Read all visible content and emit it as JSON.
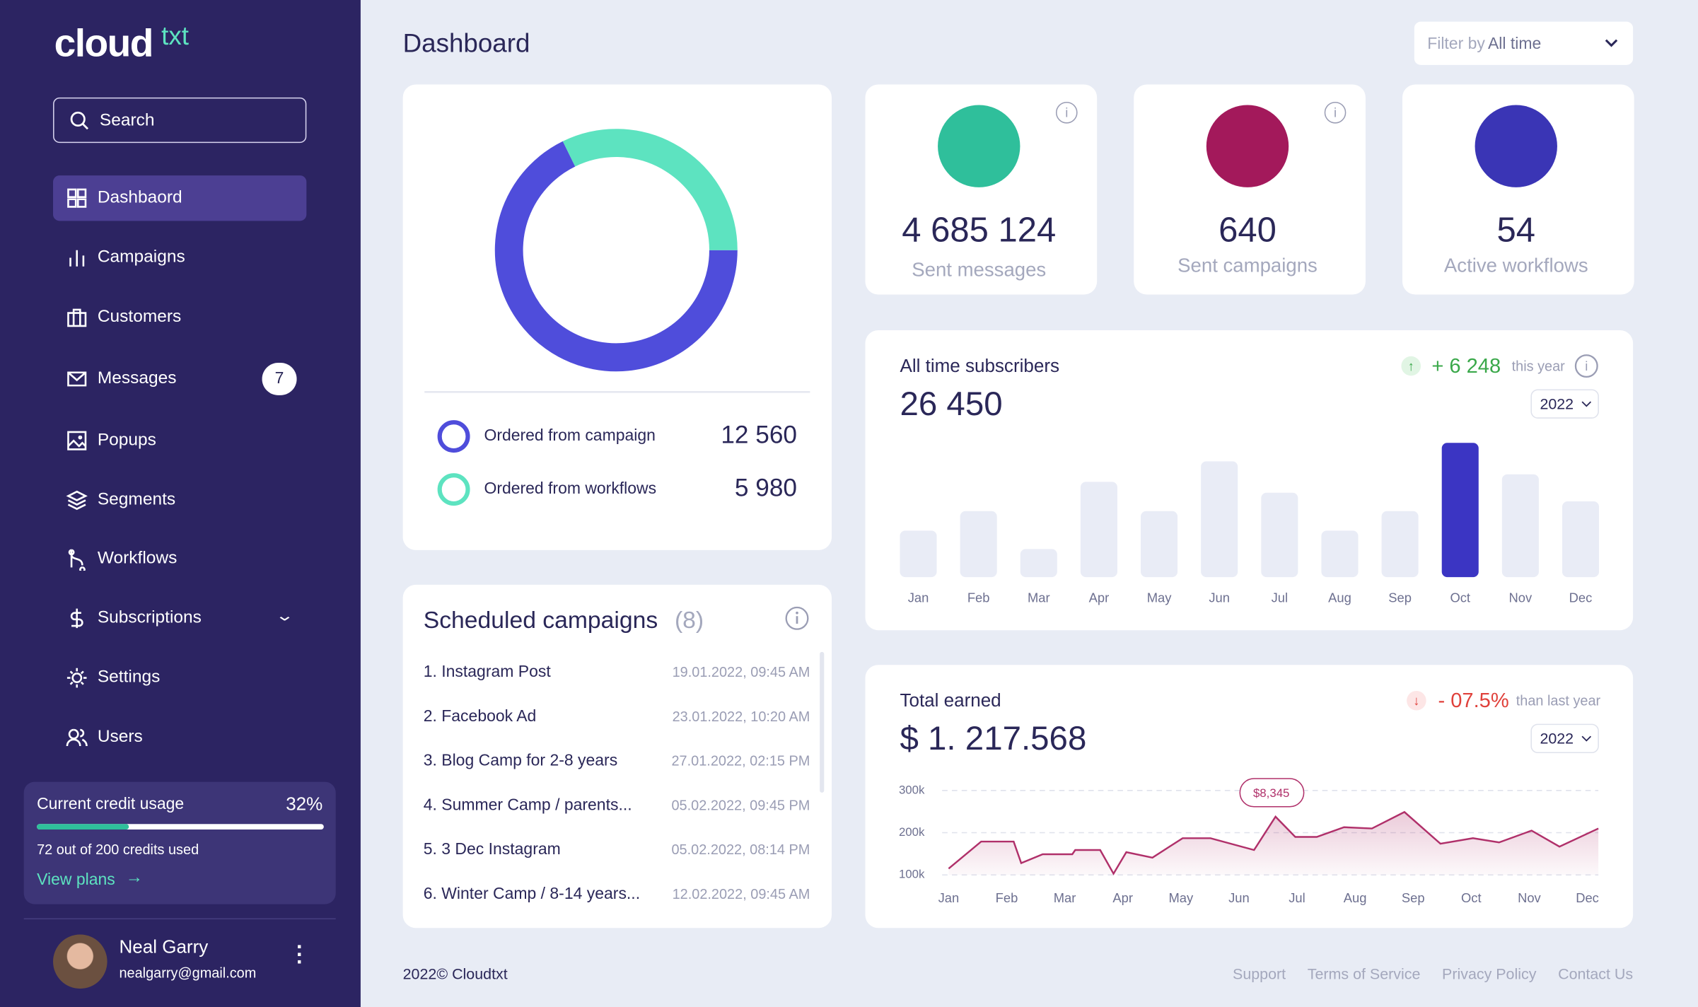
{
  "sidebar": {
    "logo": {
      "main": "cloud",
      "accent": "txt"
    },
    "search": "Search",
    "nav": [
      {
        "label": "Dashbaord"
      },
      {
        "label": "Campaigns"
      },
      {
        "label": "Customers"
      },
      {
        "label": "Messages",
        "badge": 7
      },
      {
        "label": "Popups"
      },
      {
        "label": "Segments"
      },
      {
        "label": "Workflows"
      },
      {
        "label": "Subscriptions"
      },
      {
        "label": "Settings"
      },
      {
        "label": "Users"
      }
    ],
    "credit": {
      "title": "Current credit usage",
      "percent": 32,
      "percent_label": "32%",
      "detail": "72 out of 200 credits used",
      "link": "View plans"
    },
    "user": {
      "name": "Neal Garry",
      "email": "nealgarry@gmail.com"
    }
  },
  "header": {
    "title": "Dashboard",
    "filter_prefix": "Filter by",
    "filter_value": "All time"
  },
  "stats": [
    {
      "value": "4 685 124",
      "label": "Sent messages"
    },
    {
      "value": "640",
      "label": "Sent campaigns"
    },
    {
      "value": "54",
      "label": "Active workflows"
    }
  ],
  "scheduled": {
    "title": "Scheduled campaigns",
    "count": "(8)",
    "rows": [
      [
        "1. Instagram Post",
        "19.01.2022, 09:45 AM"
      ],
      [
        "2. Facebook Ad",
        "23.01.2022, 10:20 AM"
      ],
      [
        "3. Blog Camp for 2-8 years",
        "27.01.2022, 02:15 PM"
      ],
      [
        "4. Summer Camp / parents...",
        "05.02.2022, 09:45 PM"
      ],
      [
        "5. 3 Dec Instagram",
        "05.02.2022, 08:14 PM"
      ],
      [
        "6. Winter Camp / 8-14 years...",
        "12.02.2022, 09:45 AM"
      ]
    ]
  },
  "footer": {
    "copyright": "2022© Cloudtxt",
    "links": [
      "Support",
      "Terms of Service",
      "Privacy Policy",
      "Contact Us"
    ]
  },
  "chart_data": [
    {
      "type": "donut",
      "categories": [
        "Ordered from campaign",
        "Ordered from workflows"
      ],
      "values": [
        12560,
        5980
      ],
      "value_labels": [
        "12 560",
        "5 980"
      ],
      "colors": [
        "#4f4ddb",
        "#5de3c0"
      ]
    },
    {
      "type": "bar",
      "title": "All time subscribers",
      "total": "26 450",
      "change": "+ 6 248",
      "change_note": "this year",
      "year": "2022",
      "categories": [
        "Jan",
        "Feb",
        "Mar",
        "Apr",
        "May",
        "Jun",
        "Jul",
        "Aug",
        "Sep",
        "Oct",
        "Nov",
        "Dec"
      ],
      "values": [
        43,
        61,
        26,
        88,
        61,
        107,
        78,
        43,
        61,
        124,
        95,
        70
      ],
      "color": "#e9ecf6",
      "highlight": "Oct",
      "highlight_color": "#3b35c3"
    },
    {
      "type": "line",
      "title": "Total earned",
      "total": "$ 1. 217.568",
      "change": "- 07.5%",
      "change_note": "than last year",
      "year": "2022",
      "annotation": "$8,345",
      "x": [
        0,
        0.56,
        1.12,
        1.25,
        1.62,
        2.13,
        2.18,
        2.61,
        2.84,
        3.06,
        3.51,
        4.03,
        4.51,
        5.26,
        5.63,
        5.97,
        6.34,
        6.81,
        7.29,
        7.85,
        8.47,
        9.03,
        9.48,
        10.04,
        10.52,
        11.19
      ],
      "values": [
        115,
        179,
        179,
        128,
        149,
        149,
        159,
        159,
        103,
        154,
        141,
        187,
        187,
        159,
        238,
        190,
        190,
        213,
        210,
        249,
        174,
        187,
        177,
        205,
        167,
        210
      ],
      "xlim": [
        0,
        11.19
      ],
      "xticks": [
        {
          "value": 0,
          "label": "Jan"
        },
        {
          "value": 1,
          "label": "Feb"
        },
        {
          "value": 2,
          "label": "Mar"
        },
        {
          "value": 3,
          "label": "Apr"
        },
        {
          "value": 4,
          "label": "May"
        },
        {
          "value": 5,
          "label": "Jun"
        },
        {
          "value": 6,
          "label": "Jul"
        },
        {
          "value": 7,
          "label": "Aug"
        },
        {
          "value": 8,
          "label": "Sep"
        },
        {
          "value": 9,
          "label": "Oct"
        },
        {
          "value": 10,
          "label": "Nov"
        },
        {
          "value": 11,
          "label": "Dec"
        }
      ],
      "ylim": [
        100,
        300
      ],
      "yticks": [
        {
          "value": 100,
          "label": "100k"
        },
        {
          "value": 200,
          "label": "200k"
        },
        {
          "value": 300,
          "label": "300k"
        }
      ],
      "grid": true,
      "color": "#b0306a"
    }
  ]
}
